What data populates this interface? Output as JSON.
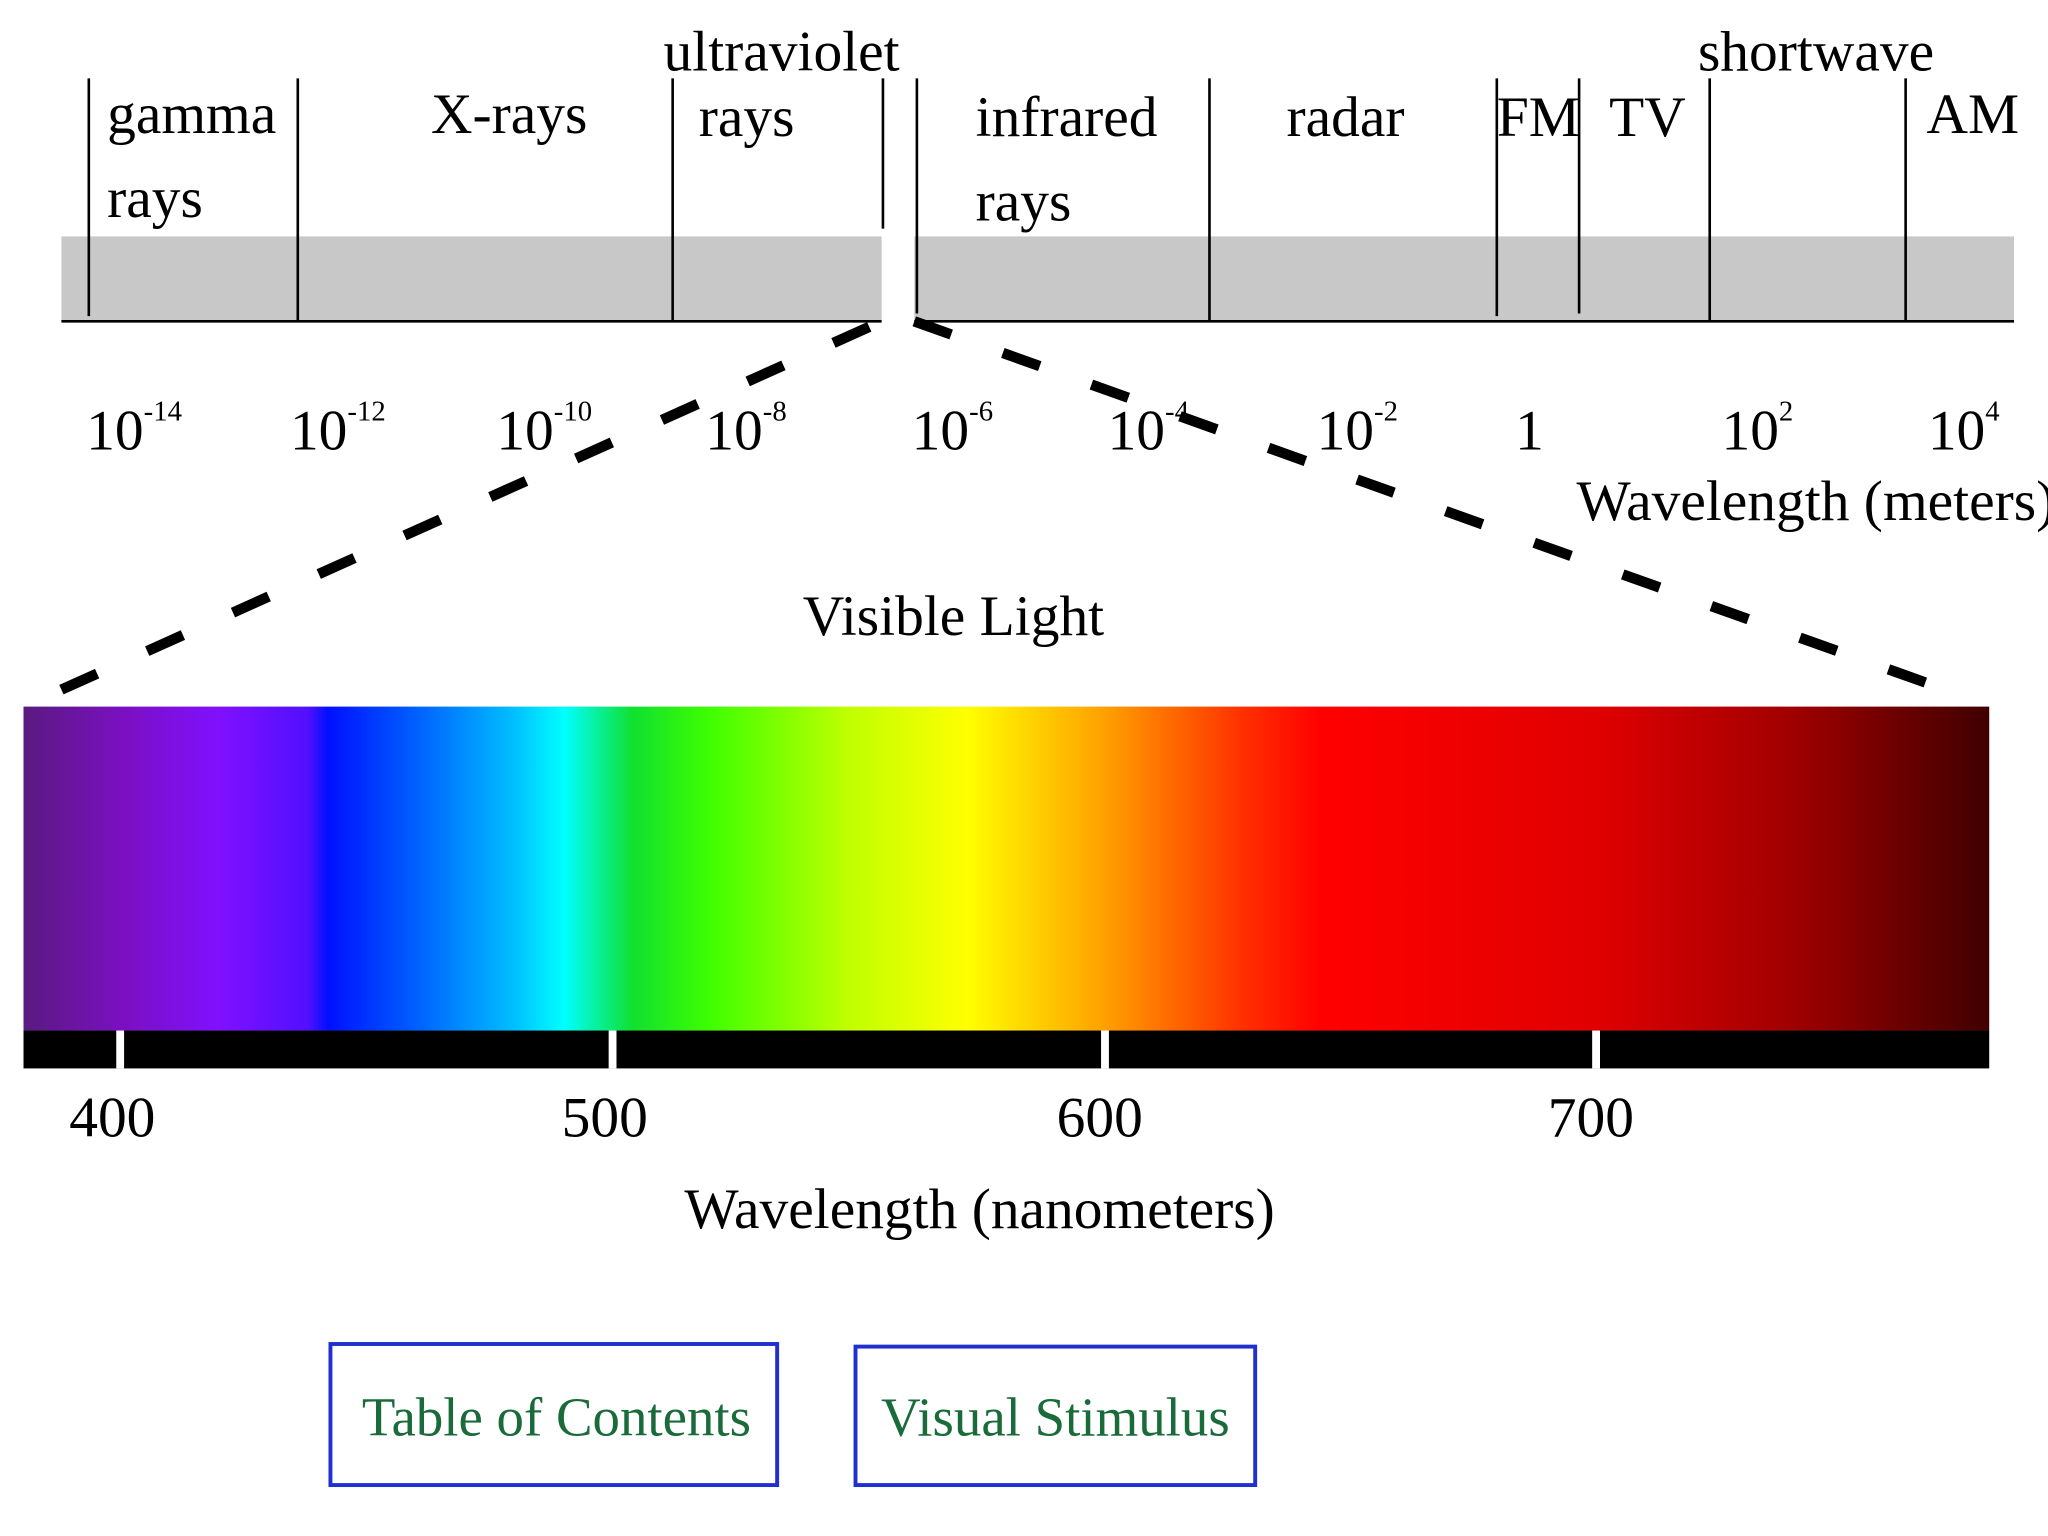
{
  "spectrum": {
    "bands": [
      {
        "lines": [
          "gamma",
          "rays"
        ]
      },
      {
        "lines": [
          "X-rays"
        ]
      },
      {
        "lines": [
          "ultraviolet",
          "rays"
        ]
      },
      {
        "lines": [
          "infrared",
          "rays"
        ]
      },
      {
        "lines": [
          "radar"
        ]
      },
      {
        "lines": [
          "FM"
        ]
      },
      {
        "lines": [
          "TV"
        ]
      },
      {
        "lines": [
          "shortwave"
        ]
      },
      {
        "lines": [
          "AM"
        ]
      }
    ],
    "ticks": [
      {
        "base": "10",
        "exponent": "-14"
      },
      {
        "base": "10",
        "exponent": "-12"
      },
      {
        "base": "10",
        "exponent": "-10"
      },
      {
        "base": "10",
        "exponent": "-8"
      },
      {
        "base": "10",
        "exponent": "-6"
      },
      {
        "base": "10",
        "exponent": "-4"
      },
      {
        "base": "10",
        "exponent": "-2"
      },
      {
        "base": "1"
      },
      {
        "base": "10",
        "exponent": "2"
      },
      {
        "base": "10",
        "exponent": "4"
      }
    ],
    "axis_label": "Wavelength (meters)"
  },
  "visible_light": {
    "title": "Visible Light",
    "ticks": [
      "400",
      "500",
      "600",
      "700"
    ],
    "axis_label": "Wavelength (nanometers)"
  },
  "buttons": [
    "Table of Contents",
    "Visual Stimulus"
  ]
}
